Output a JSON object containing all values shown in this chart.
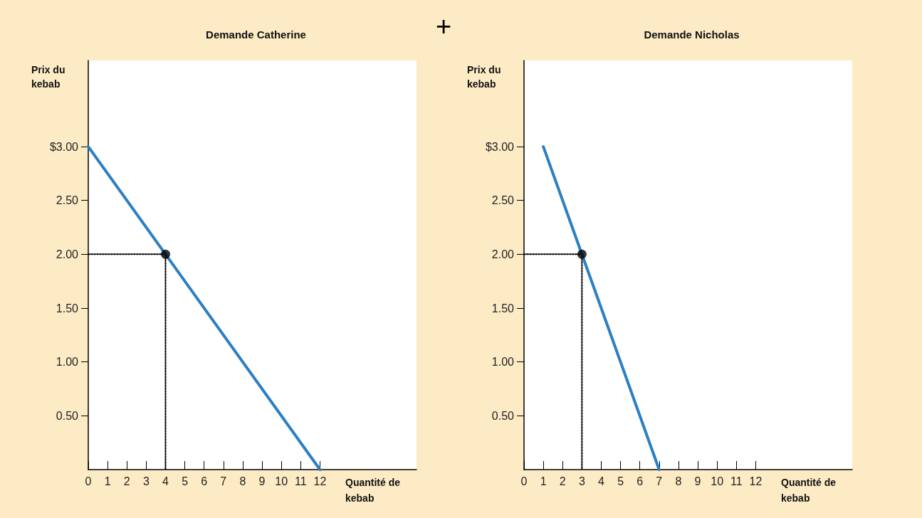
{
  "chart_data": [
    {
      "type": "line",
      "title": "Demande Catherine",
      "xlabel": "Quantité de kebab",
      "ylabel": "Prix du kebab",
      "annotations": [
        "+"
      ],
      "xlim": [
        0,
        17
      ],
      "xticks": [
        0,
        1,
        2,
        3,
        4,
        5,
        6,
        7,
        8,
        9,
        10,
        11,
        12
      ],
      "ylim": [
        0,
        3.8
      ],
      "yticks": [
        {
          "value": 0.5,
          "label": "0.50"
        },
        {
          "value": 1,
          "label": "1.00"
        },
        {
          "value": 1.5,
          "label": "1.50"
        },
        {
          "value": 2,
          "label": "2.00"
        },
        {
          "value": 2.5,
          "label": "2.50"
        },
        {
          "value": 3,
          "label": "$3.00"
        }
      ],
      "grid": false,
      "series": [
        {
          "color": "#2b7fc3",
          "x": [
            0,
            12
          ],
          "values": [
            3,
            0
          ],
          "marker": "none",
          "line_style": "solid"
        },
        {
          "color": "#000000",
          "x": [
            0,
            4,
            4
          ],
          "values": [
            2,
            2,
            0
          ],
          "marker": "none",
          "line_style": "dotted"
        },
        {
          "type": "scatter",
          "color": "#000000",
          "x": [
            4
          ],
          "values": [
            2
          ],
          "marker": "circle"
        }
      ]
    },
    {
      "type": "line",
      "title": "Demande Nicholas",
      "xlabel": "Quantité de kebab",
      "ylabel": "Prix du kebab",
      "xlim": [
        0,
        17
      ],
      "xticks": [
        0,
        1,
        2,
        3,
        4,
        5,
        6,
        7,
        8,
        9,
        10,
        11,
        12
      ],
      "ylim": [
        0,
        3.8
      ],
      "yticks": [
        {
          "value": 0.5,
          "label": "0.50"
        },
        {
          "value": 1,
          "label": "1.00"
        },
        {
          "value": 1.5,
          "label": "1.50"
        },
        {
          "value": 2,
          "label": "2.00"
        },
        {
          "value": 2.5,
          "label": "2.50"
        },
        {
          "value": 3,
          "label": "$3.00"
        }
      ],
      "grid": false,
      "series": [
        {
          "color": "#2b7fc3",
          "x": [
            1,
            7
          ],
          "values": [
            3,
            0
          ],
          "marker": "none",
          "line_style": "solid"
        },
        {
          "color": "#000000",
          "x": [
            0,
            3,
            3
          ],
          "values": [
            2,
            2,
            0
          ],
          "marker": "none",
          "line_style": "dotted"
        },
        {
          "type": "scatter",
          "color": "#000000",
          "x": [
            3
          ],
          "values": [
            2
          ],
          "marker": "circle"
        }
      ]
    }
  ]
}
